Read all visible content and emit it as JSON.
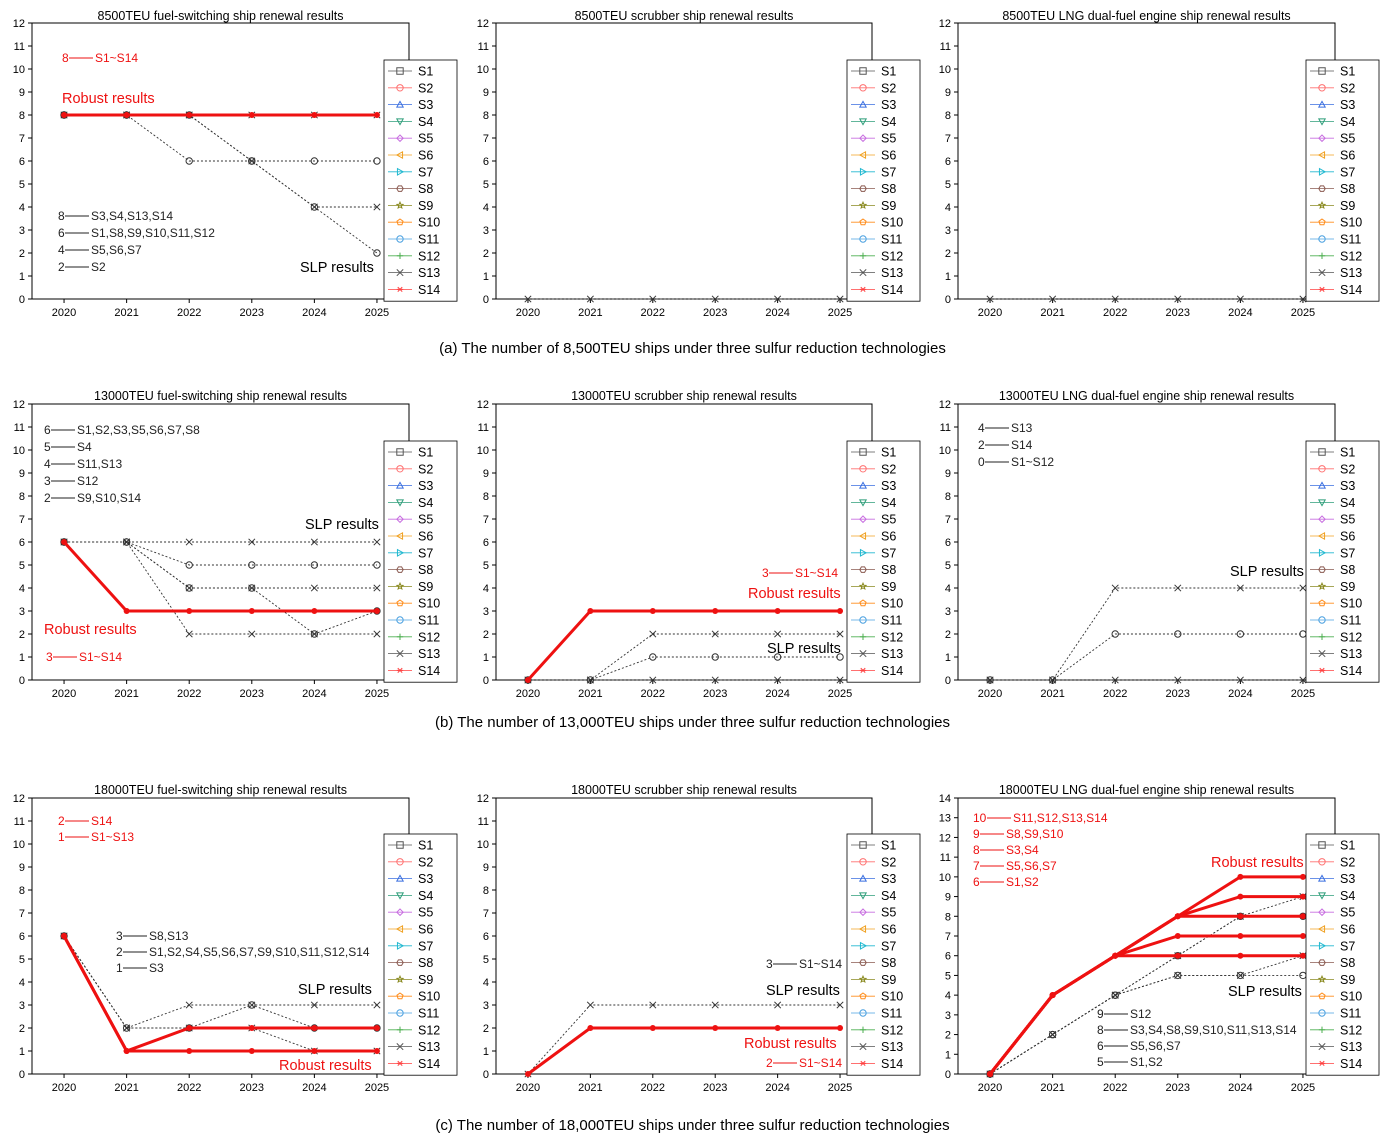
{
  "captions": {
    "a": "(a) The number of 8,500TEU ships under three sulfur reduction technologies",
    "b": "(b) The number of 13,000TEU ships under three sulfur reduction technologies",
    "c": "(c) The number of 18,000TEU ships under three sulfur reduction technologies"
  },
  "legend": {
    "entries": [
      "S1",
      "S2",
      "S3",
      "S4",
      "S5",
      "S6",
      "S7",
      "S8",
      "S9",
      "S10",
      "S11",
      "S12",
      "S13",
      "S14"
    ],
    "markers": [
      "square",
      "circle",
      "triangle-up",
      "triangle-down",
      "diamond",
      "triangle-left",
      "triangle-right",
      "hexagon",
      "star",
      "pentagon",
      "circle",
      "plus",
      "cross",
      "asterisk"
    ],
    "colors": [
      "#555555",
      "#ff6f6f",
      "#3a6fe0",
      "#2e9e7a",
      "#c86ee0",
      "#f0a020",
      "#20b8d0",
      "#8a5a50",
      "#8a8a20",
      "#ff8c1a",
      "#4aa0e0",
      "#4caf50",
      "#555555",
      "#ff4040"
    ]
  },
  "colors": {
    "robust": "#ee1111",
    "slp": "#333333",
    "annotation_red": "#ee1111",
    "annotation_black": "#222222"
  },
  "chart_data": [
    {
      "id": "a1",
      "type": "line",
      "title": "8500TEU fuel-switching ship renewal results",
      "x": [
        2020,
        2021,
        2022,
        2023,
        2024,
        2025
      ],
      "ylim": [
        0,
        12
      ],
      "yticks": [
        0,
        1,
        2,
        3,
        4,
        5,
        6,
        7,
        8,
        9,
        10,
        11,
        12
      ],
      "robust_series": [
        {
          "label": "S1~S14",
          "values": [
            8,
            8,
            8,
            8,
            8,
            8
          ]
        }
      ],
      "slp_series": [
        {
          "label": "S3,S4,S13,S14",
          "values": [
            8,
            8,
            8,
            8,
            8,
            8
          ]
        },
        {
          "label": "S1,S8,S9,S10,S11,S12",
          "values": [
            8,
            8,
            8,
            6,
            6,
            6
          ]
        },
        {
          "label": "S5,S6,S7",
          "values": [
            8,
            8,
            8,
            6,
            4,
            4
          ]
        },
        {
          "label": "S2",
          "values": [
            8,
            8,
            6,
            6,
            4,
            2
          ]
        }
      ],
      "robust_label": "Robust results",
      "slp_label": "SLP results",
      "red_notes": [
        {
          "num": "8",
          "text": "S1~S14"
        }
      ],
      "black_notes": [
        {
          "num": "8",
          "text": "S3,S4,S13,S14"
        },
        {
          "num": "6",
          "text": "S1,S8,S9,S10,S11,S12"
        },
        {
          "num": "4",
          "text": "S5,S6,S7"
        },
        {
          "num": "2",
          "text": "S2"
        }
      ]
    },
    {
      "id": "a2",
      "type": "line",
      "title": "8500TEU scrubber ship renewal results",
      "x": [
        2020,
        2021,
        2022,
        2023,
        2024,
        2025
      ],
      "ylim": [
        0,
        12
      ],
      "yticks": [
        0,
        1,
        2,
        3,
        4,
        5,
        6,
        7,
        8,
        9,
        10,
        11,
        12
      ],
      "robust_series": [],
      "slp_series": [
        {
          "label": "S1~S14",
          "values": [
            0,
            0,
            0,
            0,
            0,
            0
          ]
        }
      ],
      "robust_label": "",
      "slp_label": "",
      "red_notes": [],
      "black_notes": []
    },
    {
      "id": "a3",
      "type": "line",
      "title": "8500TEU LNG dual-fuel engine ship renewal results",
      "x": [
        2020,
        2021,
        2022,
        2023,
        2024,
        2025
      ],
      "ylim": [
        0,
        12
      ],
      "yticks": [
        0,
        1,
        2,
        3,
        4,
        5,
        6,
        7,
        8,
        9,
        10,
        11,
        12
      ],
      "robust_series": [],
      "slp_series": [
        {
          "label": "S1~S14",
          "values": [
            0,
            0,
            0,
            0,
            0,
            0
          ]
        }
      ],
      "robust_label": "",
      "slp_label": "",
      "red_notes": [],
      "black_notes": []
    },
    {
      "id": "b1",
      "type": "line",
      "title": "13000TEU fuel-switching ship renewal results",
      "x": [
        2020,
        2021,
        2022,
        2023,
        2024,
        2025
      ],
      "ylim": [
        0,
        12
      ],
      "yticks": [
        0,
        1,
        2,
        3,
        4,
        5,
        6,
        7,
        8,
        9,
        10,
        11,
        12
      ],
      "robust_series": [
        {
          "label": "S1~S14",
          "values": [
            6,
            3,
            3,
            3,
            3,
            3
          ]
        }
      ],
      "slp_series": [
        {
          "label": "S1,S2,S3,S5,S6,S7,S8",
          "values": [
            6,
            6,
            6,
            6,
            6,
            6
          ]
        },
        {
          "label": "S4",
          "values": [
            6,
            6,
            5,
            5,
            5,
            5
          ]
        },
        {
          "label": "S11,S13",
          "values": [
            6,
            6,
            4,
            4,
            4,
            4
          ]
        },
        {
          "label": "S12",
          "values": [
            6,
            6,
            4,
            4,
            2,
            3
          ]
        },
        {
          "label": "S9,S10,S14",
          "values": [
            6,
            6,
            2,
            2,
            2,
            2
          ]
        }
      ],
      "robust_label": "Robust results",
      "slp_label": "SLP results",
      "red_notes": [
        {
          "num": "3",
          "text": "S1~S14"
        }
      ],
      "black_notes": [
        {
          "num": "6",
          "text": "S1,S2,S3,S5,S6,S7,S8"
        },
        {
          "num": "5",
          "text": "S4"
        },
        {
          "num": "4",
          "text": "S11,S13"
        },
        {
          "num": "3",
          "text": "S12"
        },
        {
          "num": "2",
          "text": "S9,S10,S14"
        }
      ]
    },
    {
      "id": "b2",
      "type": "line",
      "title": "13000TEU scrubber ship renewal results",
      "x": [
        2020,
        2021,
        2022,
        2023,
        2024,
        2025
      ],
      "ylim": [
        0,
        12
      ],
      "yticks": [
        0,
        1,
        2,
        3,
        4,
        5,
        6,
        7,
        8,
        9,
        10,
        11,
        12
      ],
      "robust_series": [
        {
          "label": "S1~S14",
          "values": [
            0,
            3,
            3,
            3,
            3,
            3
          ]
        }
      ],
      "slp_series": [
        {
          "label": "S2",
          "values": [
            0,
            0,
            2,
            2,
            2,
            2
          ]
        },
        {
          "label": "S4",
          "values": [
            0,
            0,
            1,
            1,
            1,
            1
          ]
        },
        {
          "label": "S1",
          "values": [
            0,
            0,
            0,
            0,
            0,
            0
          ]
        }
      ],
      "robust_label": "Robust results",
      "slp_label": "SLP results",
      "red_notes": [
        {
          "num": "3",
          "text": "S1~S14"
        }
      ],
      "black_notes": []
    },
    {
      "id": "b3",
      "type": "line",
      "title": "13000TEU LNG dual-fuel engine ship renewal results",
      "x": [
        2020,
        2021,
        2022,
        2023,
        2024,
        2025
      ],
      "ylim": [
        0,
        12
      ],
      "yticks": [
        0,
        1,
        2,
        3,
        4,
        5,
        6,
        7,
        8,
        9,
        10,
        11,
        12
      ],
      "robust_series": [],
      "slp_series": [
        {
          "label": "S13",
          "values": [
            0,
            0,
            4,
            4,
            4,
            4
          ]
        },
        {
          "label": "S14",
          "values": [
            0,
            0,
            2,
            2,
            2,
            2
          ]
        },
        {
          "label": "S1~S12",
          "values": [
            0,
            0,
            0,
            0,
            0,
            0
          ]
        }
      ],
      "robust_label": "",
      "slp_label": "SLP results",
      "red_notes": [],
      "black_notes": [
        {
          "num": "4",
          "text": "S13"
        },
        {
          "num": "2",
          "text": "S14"
        },
        {
          "num": "0",
          "text": "S1~S12"
        }
      ]
    },
    {
      "id": "c1",
      "type": "line",
      "title": "18000TEU fuel-switching ship renewal results",
      "x": [
        2020,
        2021,
        2022,
        2023,
        2024,
        2025
      ],
      "ylim": [
        0,
        12
      ],
      "yticks": [
        0,
        1,
        2,
        3,
        4,
        5,
        6,
        7,
        8,
        9,
        10,
        11,
        12
      ],
      "robust_series": [
        {
          "label": "S14",
          "values": [
            6,
            1,
            2,
            2,
            2,
            2
          ]
        },
        {
          "label": "S1~S13",
          "values": [
            6,
            1,
            1,
            1,
            1,
            1
          ]
        }
      ],
      "slp_series": [
        {
          "label": "S8,S13",
          "values": [
            6,
            2,
            3,
            3,
            3,
            3
          ]
        },
        {
          "label": "S1,S2,S4,S5,S6,S7,S9,S10,S11,S12,S14",
          "values": [
            6,
            2,
            2,
            3,
            2,
            2
          ]
        },
        {
          "label": "S3",
          "values": [
            6,
            2,
            2,
            2,
            1,
            1
          ]
        }
      ],
      "robust_label": "Robust results",
      "slp_label": "SLP results",
      "red_notes": [
        {
          "num": "2",
          "text": "S14"
        },
        {
          "num": "1",
          "text": "S1~S13"
        }
      ],
      "black_notes": [
        {
          "num": "3",
          "text": "S8,S13"
        },
        {
          "num": "2",
          "text": "S1,S2,S4,S5,S6,S7,S9,S10,S11,S12,S14"
        },
        {
          "num": "1",
          "text": "S3"
        }
      ]
    },
    {
      "id": "c2",
      "type": "line",
      "title": "18000TEU scrubber ship renewal results",
      "x": [
        2020,
        2021,
        2022,
        2023,
        2024,
        2025
      ],
      "ylim": [
        0,
        12
      ],
      "yticks": [
        0,
        1,
        2,
        3,
        4,
        5,
        6,
        7,
        8,
        9,
        10,
        11,
        12
      ],
      "robust_series": [
        {
          "label": "S1~S14",
          "values": [
            0,
            2,
            2,
            2,
            2,
            2
          ]
        }
      ],
      "slp_series": [
        {
          "label": "S1~S14",
          "values": [
            0,
            3,
            3,
            3,
            3,
            3
          ]
        }
      ],
      "robust_label": "Robust results",
      "slp_label": "SLP results",
      "red_notes": [
        {
          "num": "2",
          "text": "S1~S14"
        }
      ],
      "black_notes": [
        {
          "num": "3",
          "text": "S1~S14"
        }
      ]
    },
    {
      "id": "c3",
      "type": "line",
      "title": "18000TEU LNG dual-fuel engine ship renewal results",
      "x": [
        2020,
        2021,
        2022,
        2023,
        2024,
        2025
      ],
      "ylim": [
        0,
        14
      ],
      "yticks": [
        0,
        1,
        2,
        3,
        4,
        5,
        6,
        7,
        8,
        9,
        10,
        11,
        12,
        13,
        14
      ],
      "robust_series": [
        {
          "label": "S11,S12,S13,S14",
          "values": [
            0,
            4,
            6,
            8,
            10,
            10
          ]
        },
        {
          "label": "S8,S9,S10",
          "values": [
            0,
            4,
            6,
            8,
            9,
            9
          ]
        },
        {
          "label": "S3,S4",
          "values": [
            0,
            4,
            6,
            8,
            8,
            8
          ]
        },
        {
          "label": "S5,S6,S7",
          "values": [
            0,
            4,
            6,
            7,
            7,
            7
          ]
        },
        {
          "label": "S1,S2",
          "values": [
            0,
            4,
            6,
            6,
            6,
            6
          ]
        }
      ],
      "slp_series": [
        {
          "label": "S12",
          "values": [
            0,
            2,
            4,
            6,
            8,
            9
          ]
        },
        {
          "label": "S3,S4,S8,S9,S10,S11,S13,S14",
          "values": [
            0,
            2,
            4,
            6,
            8,
            8
          ]
        },
        {
          "label": "S5,S6,S7",
          "values": [
            0,
            2,
            4,
            5,
            5,
            6
          ]
        },
        {
          "label": "S1,S2",
          "values": [
            0,
            2,
            4,
            5,
            5,
            5
          ]
        }
      ],
      "robust_label": "Robust results",
      "slp_label": "SLP results",
      "red_notes": [
        {
          "num": "10",
          "text": "S11,S12,S13,S14"
        },
        {
          "num": "9",
          "text": "S8,S9,S10"
        },
        {
          "num": "8",
          "text": "S3,S4"
        },
        {
          "num": "7",
          "text": "S5,S6,S7"
        },
        {
          "num": "6",
          "text": "S1,S2"
        }
      ],
      "black_notes": [
        {
          "num": "9",
          "text": "S12"
        },
        {
          "num": "8",
          "text": "S3,S4,S8,S9,S10,S11,S13,S14"
        },
        {
          "num": "6",
          "text": "S5,S6,S7"
        },
        {
          "num": "5",
          "text": "S1,S2"
        }
      ]
    }
  ]
}
